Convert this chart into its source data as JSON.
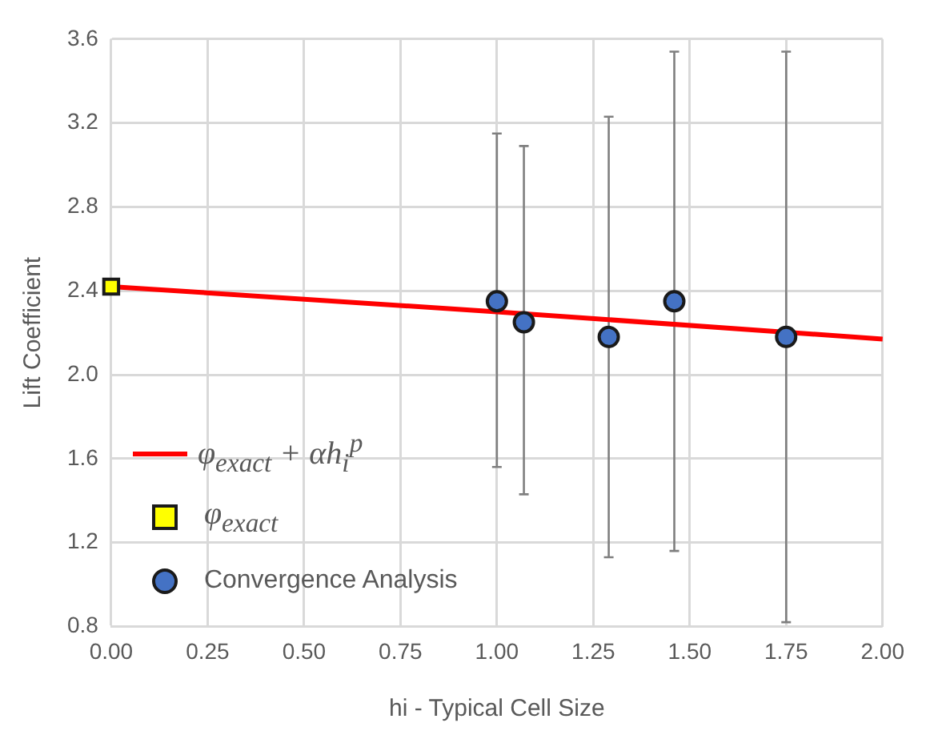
{
  "chart_data": {
    "type": "scatter",
    "xlabel": "hi - Typical Cell Size",
    "ylabel": "Lift Coefficient",
    "xlim": [
      0,
      2
    ],
    "xticks": [
      {
        "value": 0,
        "label": "0.00"
      },
      {
        "value": 0.25,
        "label": "0.25"
      },
      {
        "value": 0.5,
        "label": "0.50"
      },
      {
        "value": 0.75,
        "label": "0.75"
      },
      {
        "value": 1,
        "label": "1.00"
      },
      {
        "value": 1.25,
        "label": "1.25"
      },
      {
        "value": 1.5,
        "label": "1.50"
      },
      {
        "value": 1.75,
        "label": "1.75"
      },
      {
        "value": 2,
        "label": "2.00"
      }
    ],
    "ylim": [
      0.8,
      3.6
    ],
    "yticks": [
      {
        "value": 0.8,
        "label": "0.8"
      },
      {
        "value": 1.2,
        "label": "1.2"
      },
      {
        "value": 1.6,
        "label": "1.6"
      },
      {
        "value": 2,
        "label": "2.0"
      },
      {
        "value": 2.4,
        "label": "2.4"
      },
      {
        "value": 2.8,
        "label": "2.8"
      },
      {
        "value": 3.2,
        "label": "3.2"
      },
      {
        "value": 3.6,
        "label": "3.6"
      }
    ],
    "grid": true,
    "legend": "bottom left",
    "series": [
      {
        "name": "φ$_{exact}$ + αh$_{i}$$^{p}$",
        "type": "line",
        "color": "#ff0000",
        "marker": "none",
        "x": [
          0,
          1,
          2
        ],
        "values": [
          2.42,
          2.3,
          2.17
        ]
      },
      {
        "name": "φ$_{exact}$",
        "color": "#ffff00",
        "marker": "square",
        "x": [
          0
        ],
        "values": [
          2.42
        ]
      },
      {
        "name": "Convergence Analysis",
        "color": "#4472c4",
        "marker": "circle",
        "x": [
          1,
          1.07,
          1.29,
          1.46,
          1.75
        ],
        "values": [
          2.35,
          2.25,
          2.18,
          2.35,
          2.18
        ],
        "errors": [
          [
            1.56,
            3.15
          ],
          [
            1.43,
            3.09
          ],
          [
            1.13,
            3.23
          ],
          [
            1.16,
            3.54
          ],
          [
            0.82,
            3.54
          ]
        ]
      }
    ]
  }
}
